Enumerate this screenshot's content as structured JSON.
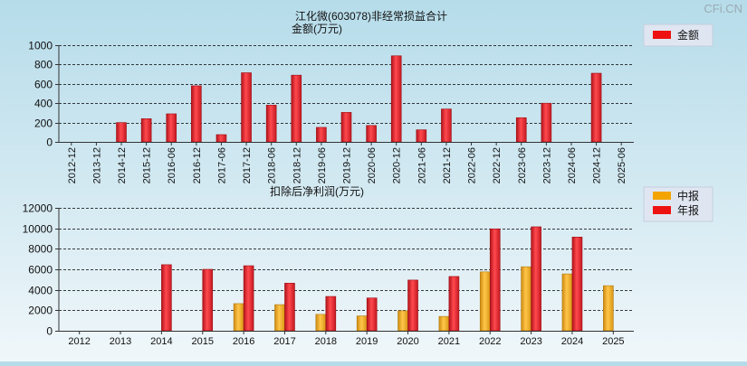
{
  "watermark": "CFi.CN",
  "colors": {
    "annual": "#e8242b",
    "interim": "#f2a81d",
    "grid": "#000000",
    "legend_bg": "#dfe6f1"
  },
  "chart_data": [
    {
      "type": "bar",
      "title": "江化微(603078)非经常损益合计",
      "ylabel": "金额(万元)",
      "ylim": [
        0,
        1000
      ],
      "yticks": [
        "0",
        "200",
        "400",
        "600",
        "800",
        "1000"
      ],
      "categories": [
        "2012-12",
        "2013-12",
        "2014-12",
        "2015-12",
        "2016-06",
        "2016-12",
        "2017-06",
        "2017-12",
        "2018-06",
        "2018-12",
        "2019-06",
        "2019-12",
        "2020-06",
        "2020-12",
        "2021-06",
        "2021-12",
        "2022-06",
        "2022-12",
        "2023-06",
        "2023-12",
        "2024-06",
        "2024-12",
        "2025-06"
      ],
      "series": [
        {
          "name": "金额",
          "values": [
            0,
            0,
            200,
            240,
            290,
            580,
            75,
            715,
            380,
            690,
            150,
            305,
            170,
            890,
            125,
            340,
            0,
            0,
            250,
            400,
            0,
            710,
            0
          ]
        }
      ],
      "legend": {
        "position": "top-right",
        "labels": [
          "金额"
        ]
      }
    },
    {
      "type": "bar",
      "title": "扣除后净利润(万元)",
      "ylim": [
        0,
        12000
      ],
      "yticks": [
        "0",
        "2000",
        "4000",
        "6000",
        "8000",
        "10000",
        "12000"
      ],
      "categories": [
        "2012",
        "2013",
        "2014",
        "2015",
        "2016",
        "2017",
        "2018",
        "2019",
        "2020",
        "2021",
        "2022",
        "2023",
        "2024",
        "2025"
      ],
      "series": [
        {
          "name": "中报",
          "values": [
            0,
            0,
            0,
            0,
            2650,
            2550,
            1600,
            1450,
            1950,
            1400,
            5750,
            6250,
            5550,
            4400
          ]
        },
        {
          "name": "年报",
          "values": [
            0,
            0,
            6450,
            6000,
            6350,
            4650,
            3350,
            3200,
            4950,
            5300,
            9950,
            10150,
            9150,
            0
          ]
        }
      ],
      "legend": {
        "position": "top-right",
        "labels": [
          "中报",
          "年报"
        ]
      }
    }
  ]
}
